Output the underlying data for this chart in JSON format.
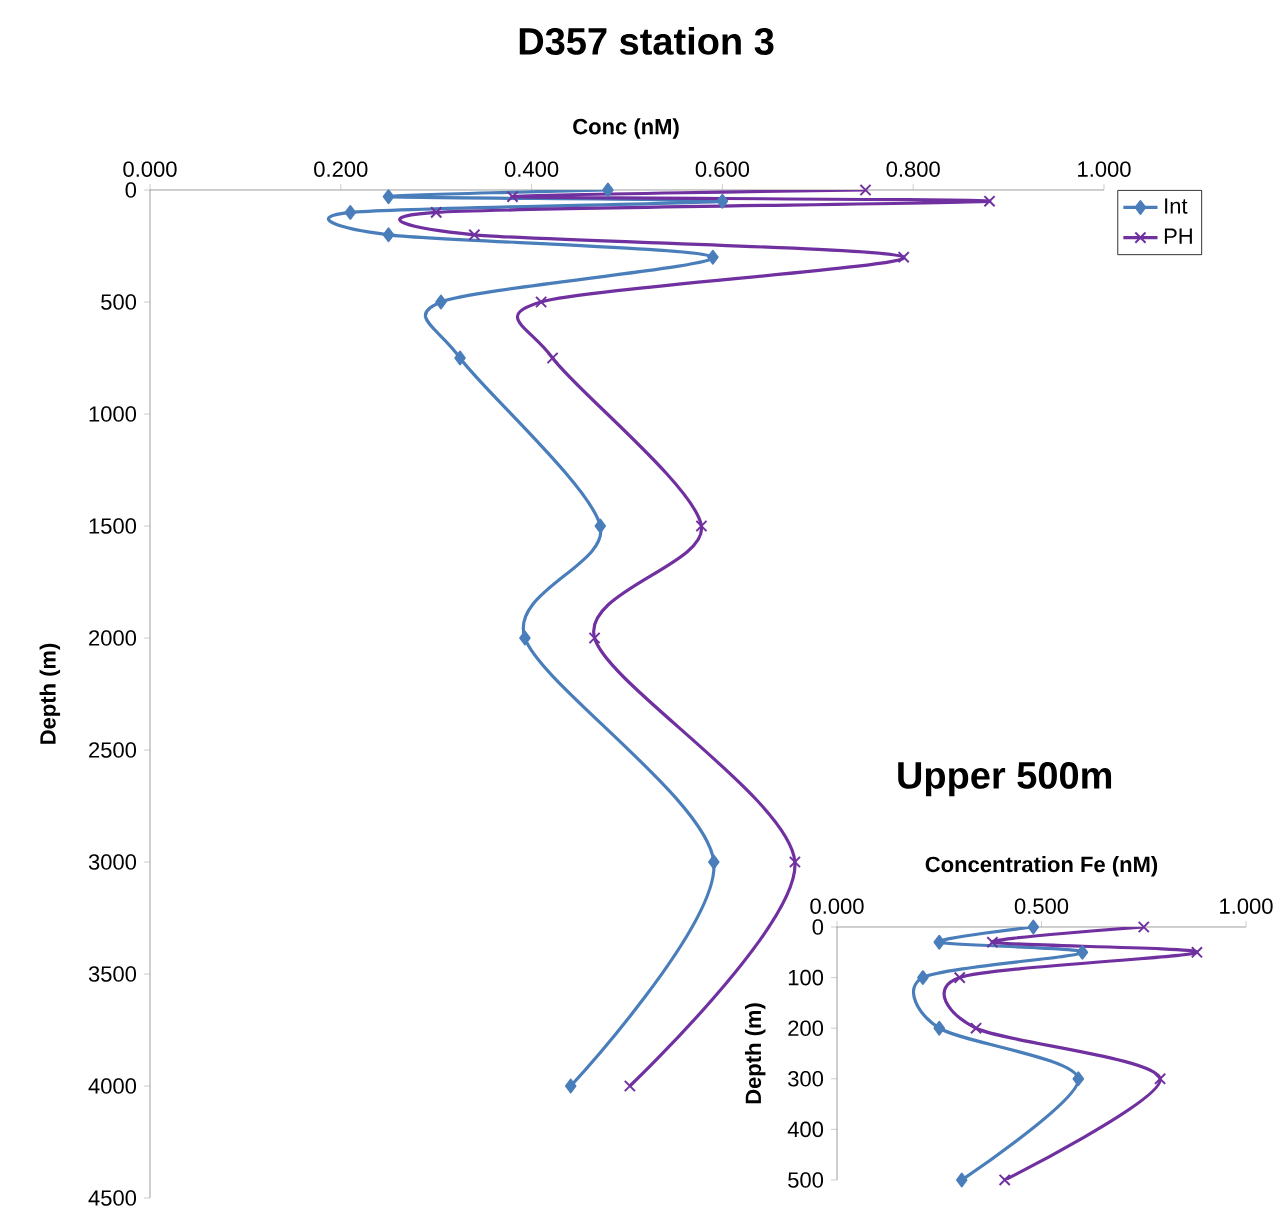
{
  "chart_data": [
    {
      "type": "line",
      "title": "D357 station 3",
      "xlabel": "Conc (nM)",
      "ylabel": "Depth (m)",
      "xlim": [
        0,
        1
      ],
      "xticks": [
        {
          "value": 0,
          "label": "0.000"
        },
        {
          "value": 0.2,
          "label": "0.200"
        },
        {
          "value": 0.4,
          "label": "0.400"
        },
        {
          "value": 0.6,
          "label": "0.600"
        },
        {
          "value": 0.8,
          "label": "0.800"
        },
        {
          "value": 1,
          "label": "1.000"
        }
      ],
      "ylim": [
        4500,
        0
      ],
      "yticks": [
        0,
        500,
        1000,
        1500,
        2000,
        2500,
        3000,
        3500,
        4000,
        4500
      ],
      "legend": "top right",
      "line_style": "solid",
      "series": [
        {
          "name": "Int",
          "color": "#4a7ebb",
          "marker": "diamond",
          "x": [
            0.48,
            0.25,
            0.6,
            0.21,
            0.25,
            0.59,
            0.305,
            0.325,
            0.472,
            0.393,
            0.591,
            0.441
          ],
          "values": [
            0,
            30,
            50,
            100,
            200,
            300,
            500,
            750,
            1500,
            2000,
            3000,
            4000
          ]
        },
        {
          "name": "PH",
          "color": "#7030a0",
          "marker": "cross",
          "x": [
            0.75,
            0.38,
            0.88,
            0.3,
            0.34,
            0.79,
            0.41,
            0.422,
            0.578,
            0.466,
            0.676,
            0.503
          ],
          "values": [
            0,
            30,
            50,
            100,
            200,
            300,
            500,
            750,
            1500,
            2000,
            3000,
            4000
          ]
        }
      ]
    },
    {
      "type": "line",
      "title": "Upper 500m",
      "xlabel": "Concentration Fe (nM)",
      "ylabel": "Depth (m)",
      "xlim": [
        0,
        1
      ],
      "xticks": [
        {
          "value": 0,
          "label": "0.000"
        },
        {
          "value": 0.5,
          "label": "0.500"
        },
        {
          "value": 1,
          "label": "1.000"
        }
      ],
      "ylim": [
        500,
        0
      ],
      "yticks": [
        0,
        100,
        200,
        300,
        400,
        500
      ],
      "line_style": "solid",
      "series": [
        {
          "color": "#4a7ebb",
          "marker": "diamond",
          "x": [
            0.48,
            0.25,
            0.6,
            0.21,
            0.25,
            0.59,
            0.305
          ],
          "values": [
            0,
            30,
            50,
            100,
            200,
            300,
            500
          ]
        },
        {
          "color": "#7030a0",
          "marker": "cross",
          "x": [
            0.75,
            0.38,
            0.88,
            0.3,
            0.34,
            0.79,
            0.41
          ],
          "values": [
            0,
            30,
            50,
            100,
            200,
            300,
            500
          ]
        }
      ]
    }
  ]
}
